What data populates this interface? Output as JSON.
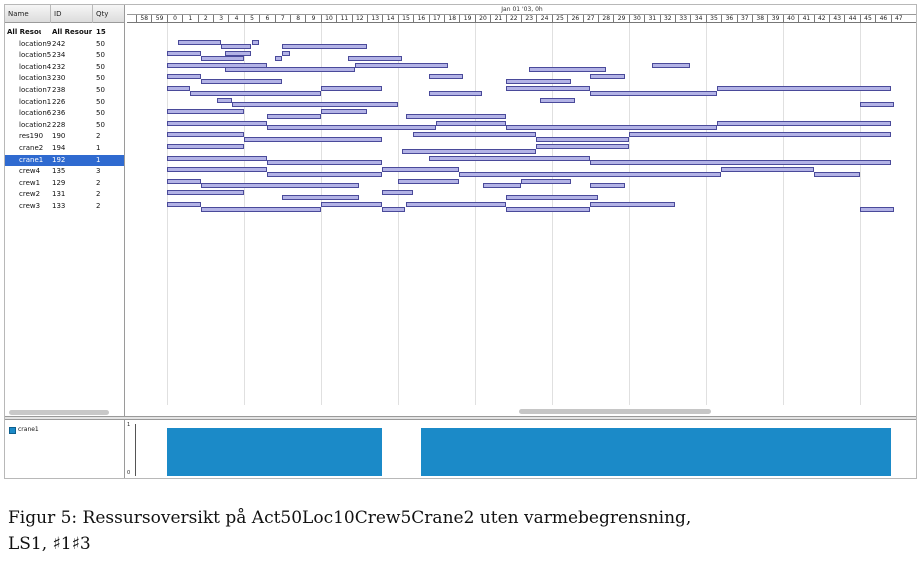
{
  "table": {
    "headers": [
      "Name",
      "ID",
      "Qty"
    ],
    "rows": [
      {
        "name": "All Resou...",
        "id": "All Resour...",
        "qty": "15"
      },
      {
        "name": "location9",
        "id": "242",
        "qty": "50"
      },
      {
        "name": "location5",
        "id": "234",
        "qty": "50"
      },
      {
        "name": "location4",
        "id": "232",
        "qty": "50"
      },
      {
        "name": "location3",
        "id": "230",
        "qty": "50"
      },
      {
        "name": "location7",
        "id": "238",
        "qty": "50"
      },
      {
        "name": "location1",
        "id": "226",
        "qty": "50"
      },
      {
        "name": "location6",
        "id": "236",
        "qty": "50"
      },
      {
        "name": "location2",
        "id": "228",
        "qty": "50"
      },
      {
        "name": "res190",
        "id": "190",
        "qty": "2"
      },
      {
        "name": "crane2",
        "id": "194",
        "qty": "1"
      },
      {
        "name": "crane1",
        "id": "192",
        "qty": "1"
      },
      {
        "name": "crew4",
        "id": "135",
        "qty": "3"
      },
      {
        "name": "crew1",
        "id": "129",
        "qty": "2"
      },
      {
        "name": "crew2",
        "id": "131",
        "qty": "2"
      },
      {
        "name": "crew3",
        "id": "133",
        "qty": "2"
      }
    ],
    "selected_index": 11
  },
  "gantt": {
    "date_label": "Jan 01 '03, 0h",
    "hour_labels": [
      "58",
      "59",
      "0",
      "1",
      "2",
      "3",
      "4",
      "5",
      "6",
      "7",
      "8",
      "9",
      "10",
      "11",
      "12",
      "13",
      "14",
      "15",
      "16",
      "17",
      "18",
      "19",
      "20",
      "21",
      "22",
      "23",
      "24",
      "25",
      "26",
      "27",
      "28",
      "29",
      "30",
      "31",
      "32",
      "33",
      "34",
      "35",
      "36",
      "37",
      "38",
      "39",
      "40",
      "41",
      "42",
      "43",
      "44",
      "45",
      "46",
      "47"
    ],
    "row_bars": [
      [],
      [
        [
          3,
          14
        ],
        [
          14,
          22
        ],
        [
          22,
          24
        ],
        [
          30,
          52
        ]
      ],
      [
        [
          0,
          9
        ],
        [
          9,
          20
        ],
        [
          15,
          22
        ],
        [
          28,
          30
        ],
        [
          30,
          32
        ],
        [
          47,
          61
        ]
      ],
      [
        [
          0,
          26
        ],
        [
          15,
          49
        ],
        [
          49,
          73
        ],
        [
          94,
          114
        ],
        [
          126,
          136
        ]
      ],
      [
        [
          0,
          9
        ],
        [
          9,
          30
        ],
        [
          68,
          77
        ],
        [
          88,
          105
        ],
        [
          110,
          119
        ]
      ],
      [
        [
          0,
          6
        ],
        [
          6,
          40
        ],
        [
          40,
          56
        ],
        [
          68,
          82
        ],
        [
          88,
          110
        ],
        [
          110,
          143
        ],
        [
          143,
          188
        ]
      ],
      [
        [
          13,
          17
        ],
        [
          17,
          60
        ],
        [
          97,
          106
        ],
        [
          180,
          189
        ]
      ],
      [
        [
          0,
          20
        ],
        [
          26,
          40
        ],
        [
          40,
          52
        ],
        [
          62,
          88
        ]
      ],
      [
        [
          0,
          26
        ],
        [
          26,
          70
        ],
        [
          70,
          88
        ],
        [
          88,
          143
        ],
        [
          143,
          188
        ]
      ],
      [
        [
          0,
          20
        ],
        [
          20,
          56
        ],
        [
          64,
          96
        ],
        [
          96,
          120
        ],
        [
          120,
          188
        ]
      ],
      [
        [
          0,
          20
        ],
        [
          61,
          96
        ],
        [
          96,
          120
        ]
      ],
      [
        [
          0,
          26
        ],
        [
          26,
          56
        ],
        [
          68,
          110
        ],
        [
          110,
          188
        ]
      ],
      [
        [
          0,
          26
        ],
        [
          26,
          56
        ],
        [
          56,
          76
        ],
        [
          76,
          144
        ],
        [
          144,
          168
        ],
        [
          168,
          180
        ]
      ],
      [
        [
          0,
          9
        ],
        [
          9,
          50
        ],
        [
          60,
          76
        ],
        [
          82,
          92
        ],
        [
          92,
          105
        ],
        [
          110,
          119
        ]
      ],
      [
        [
          0,
          20
        ],
        [
          30,
          50
        ],
        [
          56,
          64
        ],
        [
          88,
          112
        ]
      ],
      [
        [
          0,
          9
        ],
        [
          9,
          40
        ],
        [
          40,
          56
        ],
        [
          56,
          62
        ],
        [
          62,
          88
        ],
        [
          88,
          110
        ],
        [
          110,
          132
        ],
        [
          180,
          189
        ]
      ]
    ]
  },
  "histogram": {
    "legend_label": "crane1",
    "y_max_label": "1",
    "y_min_label": "0",
    "blocks": [
      [
        0,
        56
      ],
      [
        66,
        188
      ]
    ]
  },
  "caption": {
    "line1": "Figur 5: Ressursoversikt på Act50Loc10Crew5Crane2 uten varmebegrensning,",
    "line2": "LS1, ♯1♯3"
  }
}
